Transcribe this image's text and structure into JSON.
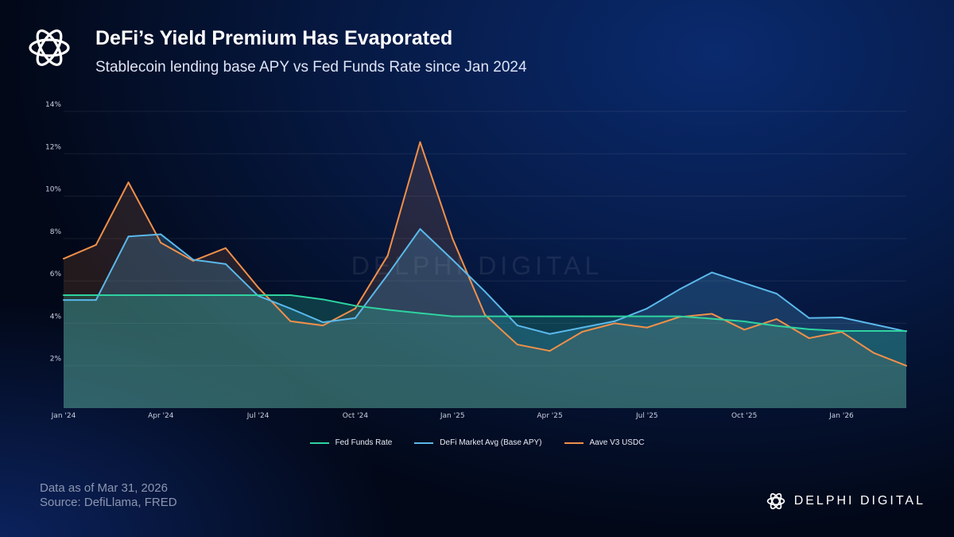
{
  "header": {
    "title": "DeFi’s Yield Premium Has Evaporated",
    "subtitle": "Stablecoin lending base APY vs Fed Funds Rate since Jan 2024"
  },
  "footer": {
    "line1": "Data as of Mar 31, 2026",
    "line2": "Source: DefiLlama, FRED"
  },
  "brand": {
    "name": "DELPHI DIGITAL",
    "watermark": "DELPHI DIGITAL"
  },
  "chart_data": {
    "type": "area",
    "x": [
      "2024-01",
      "2024-02",
      "2024-03",
      "2024-04",
      "2024-05",
      "2024-06",
      "2024-07",
      "2024-08",
      "2024-09",
      "2024-10",
      "2024-11",
      "2024-12",
      "2025-01",
      "2025-02",
      "2025-03",
      "2025-04",
      "2025-05",
      "2025-06",
      "2025-07",
      "2025-08",
      "2025-09",
      "2025-10",
      "2025-11",
      "2025-12",
      "2026-01",
      "2026-02",
      "2026-03"
    ],
    "xticks": [
      {
        "at": "2024-01",
        "label": "Jan '24"
      },
      {
        "at": "2024-04",
        "label": "Apr '24"
      },
      {
        "at": "2024-07",
        "label": "Jul '24"
      },
      {
        "at": "2024-10",
        "label": "Oct '24"
      },
      {
        "at": "2025-01",
        "label": "Jan '25"
      },
      {
        "at": "2025-04",
        "label": "Apr '25"
      },
      {
        "at": "2025-07",
        "label": "Jul '25"
      },
      {
        "at": "2025-10",
        "label": "Oct '25"
      },
      {
        "at": "2026-01",
        "label": "Jan '26"
      }
    ],
    "yticks": [
      "2%",
      "4%",
      "6%",
      "8%",
      "10%",
      "12%",
      "14%"
    ],
    "ylim": [
      0,
      14
    ],
    "grid": true,
    "legend": "bottom",
    "series": [
      {
        "name": "Aave V3 USDC",
        "color": "#f0904a",
        "values": [
          7.05,
          7.7,
          10.65,
          7.8,
          6.95,
          7.55,
          5.7,
          4.1,
          3.9,
          4.7,
          7.2,
          12.55,
          8.0,
          4.4,
          3.0,
          2.7,
          3.6,
          4.0,
          3.8,
          4.3,
          4.45,
          3.7,
          4.2,
          3.3,
          3.6,
          2.6,
          2.0
        ]
      },
      {
        "name": "DeFi Market Avg (Base APY)",
        "color": "#5ab8ea",
        "values": [
          5.1,
          5.1,
          8.1,
          8.2,
          7.0,
          6.8,
          5.3,
          4.7,
          4.05,
          4.25,
          6.3,
          8.45,
          7.0,
          5.5,
          3.9,
          3.5,
          3.8,
          4.1,
          4.7,
          5.6,
          6.4,
          5.9,
          5.4,
          4.25,
          4.28,
          3.95,
          3.62
        ]
      },
      {
        "name": "Fed Funds Rate",
        "color": "#2ed3a0",
        "values": [
          5.33,
          5.33,
          5.33,
          5.33,
          5.33,
          5.33,
          5.33,
          5.33,
          5.13,
          4.83,
          4.64,
          4.48,
          4.33,
          4.33,
          4.33,
          4.33,
          4.33,
          4.33,
          4.33,
          4.33,
          4.22,
          4.09,
          3.88,
          3.72,
          3.64,
          3.64,
          3.64
        ]
      }
    ],
    "legend_order": [
      2,
      1,
      0
    ]
  }
}
